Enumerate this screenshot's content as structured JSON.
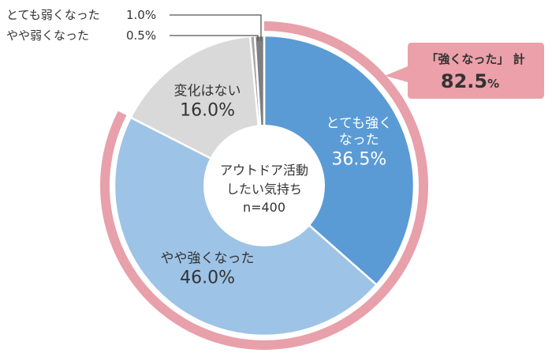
{
  "chart_data": {
    "type": "pie",
    "center_label": [
      "アウトドア活動",
      "したい気持ち",
      "n=400"
    ],
    "slices": [
      {
        "name": "とても強くなった",
        "label_lines": [
          "とても強く",
          "なった"
        ],
        "value": 36.5,
        "value_text": "36.5%",
        "color": "#5b9bd5",
        "text_color": "#ffffff"
      },
      {
        "name": "やや強くなった",
        "label_lines": [
          "やや強くなった"
        ],
        "value": 46.0,
        "value_text": "46.0%",
        "color": "#9dc3e6",
        "text_color": "#333333"
      },
      {
        "name": "変化はない",
        "label_lines": [
          "変化はない"
        ],
        "value": 16.0,
        "value_text": "16.0%",
        "color": "#d9d9d9",
        "text_color": "#333333"
      },
      {
        "name": "やや弱くなった",
        "label_lines": [
          "やや弱くなった"
        ],
        "value": 0.5,
        "value_text": "0.5%",
        "color": "#a6a6a6",
        "text_color": "#333333"
      },
      {
        "name": "とても弱くなった",
        "label_lines": [
          "とても弱くなった"
        ],
        "value": 1.0,
        "value_text": "1.0%",
        "color": "#7f7f7f",
        "text_color": "#333333"
      }
    ],
    "small_labels": [
      {
        "text": "とても弱くなった",
        "value_text": "1.0%"
      },
      {
        "text": "やや弱くなった",
        "value_text": "0.5%"
      }
    ],
    "highlight": {
      "label": "「強くなった」 計",
      "value_number": "82.5",
      "value_unit": "%",
      "value": 82.5,
      "ring_color": "#e8a0aa",
      "box_color": "#eba0aa"
    }
  }
}
